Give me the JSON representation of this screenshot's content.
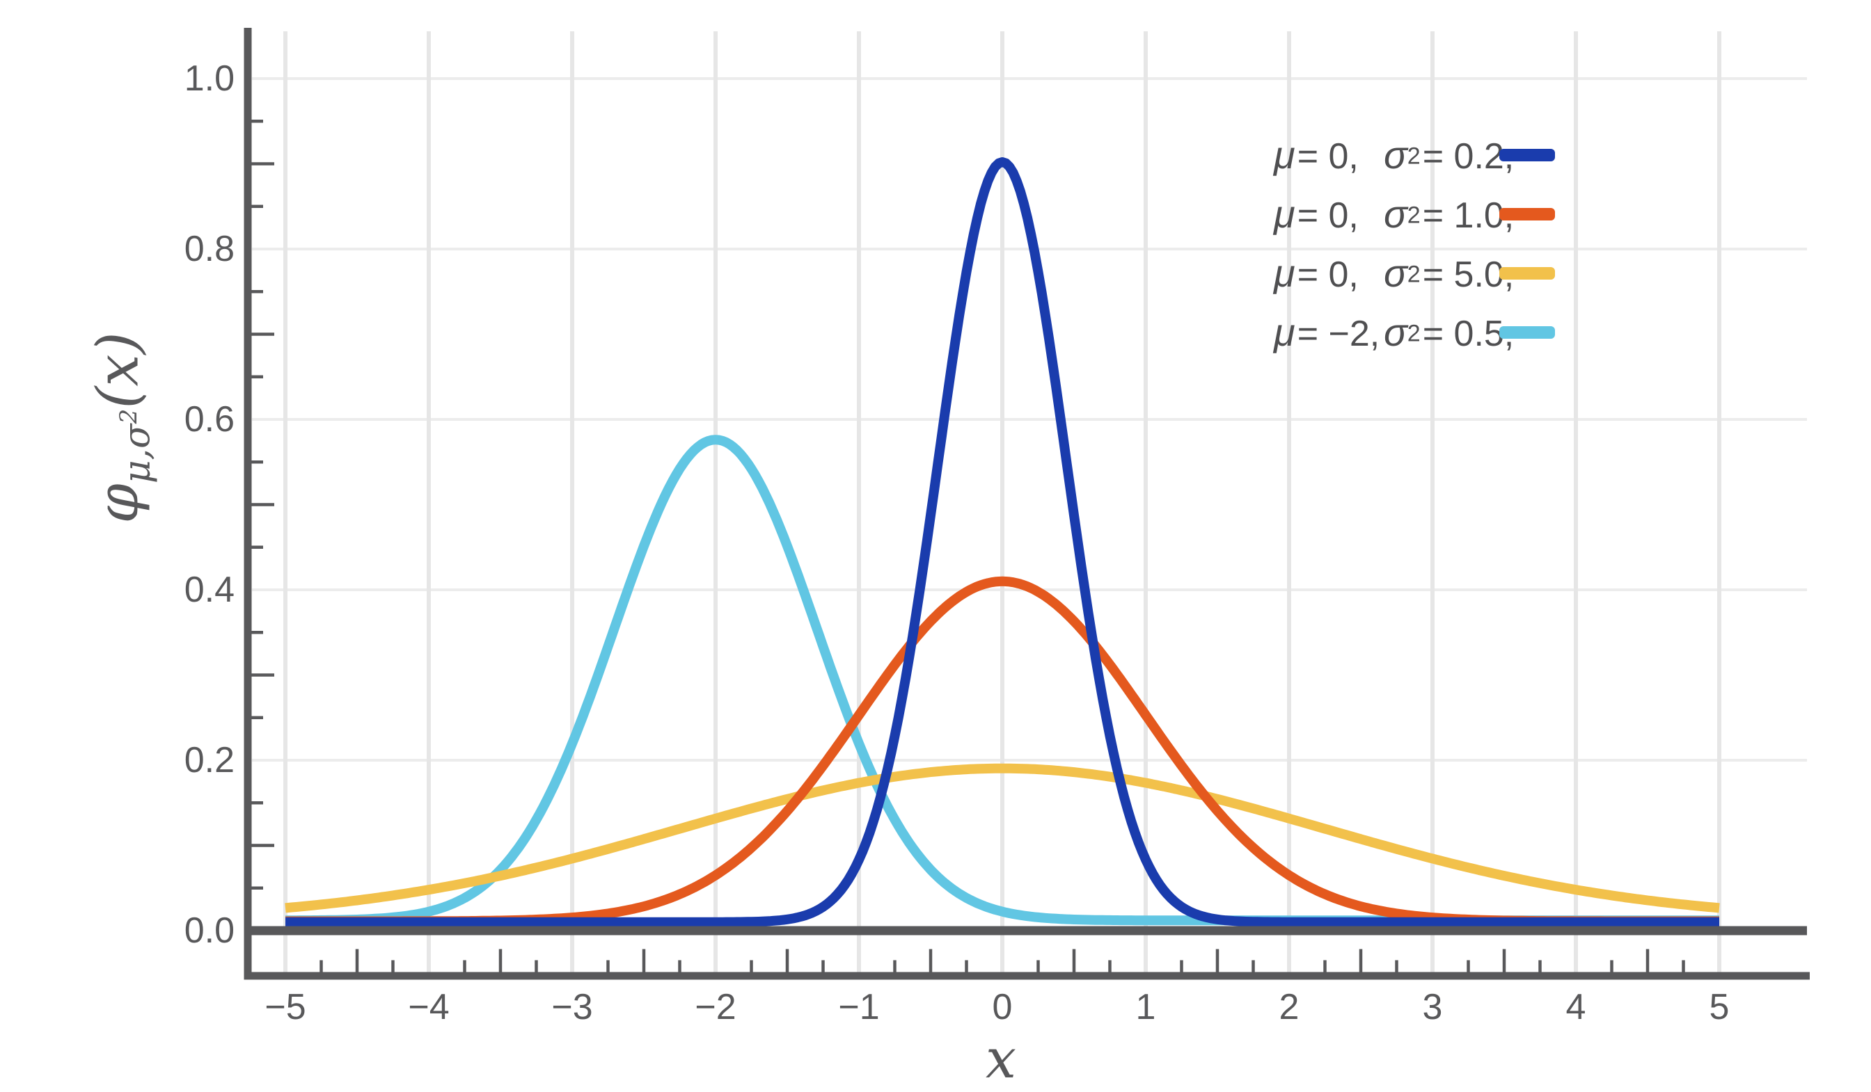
{
  "chart_data": {
    "type": "line",
    "title": "",
    "xlabel": "x",
    "ylabel": "φμ,σ²(x)",
    "ylabel_parts": {
      "phi": "φ",
      "subscript": "μ,σ",
      "subscript_sup": "2",
      "args": "(x)"
    },
    "xlim": [
      -5,
      5
    ],
    "ylim": [
      0,
      1.05
    ],
    "grid": true,
    "legend_position": "top-right",
    "function": "normal probability density φ(x) = exp(−(x−μ)²/(2σ²)) / √(2πσ²)",
    "x_gridlines": [
      -5,
      -4,
      -3,
      -2,
      -1,
      0,
      1,
      2,
      3,
      4,
      5
    ],
    "y_gridlines": [
      0.2,
      0.4,
      0.6,
      0.8,
      1.0
    ],
    "minor_ticks": {
      "x_step": 0.25,
      "x_medium_step": 0.5,
      "y_step": 0.05,
      "y_medium_step": 0.1
    },
    "x_tick_labels": [
      {
        "value": -5,
        "label": "−5"
      },
      {
        "value": -4,
        "label": "−4"
      },
      {
        "value": -3,
        "label": "−3"
      },
      {
        "value": -2,
        "label": "−2"
      },
      {
        "value": -1,
        "label": "−1"
      },
      {
        "value": 0,
        "label": "0"
      },
      {
        "value": 1,
        "label": "1"
      },
      {
        "value": 2,
        "label": "2"
      },
      {
        "value": 3,
        "label": "3"
      },
      {
        "value": 4,
        "label": "4"
      },
      {
        "value": 5,
        "label": "5"
      }
    ],
    "y_tick_labels": [
      {
        "value": 0.0,
        "label": "0.0"
      },
      {
        "value": 0.2,
        "label": "0.2"
      },
      {
        "value": 0.4,
        "label": "0.4"
      },
      {
        "value": 0.6,
        "label": "0.6"
      },
      {
        "value": 0.8,
        "label": "0.8"
      },
      {
        "value": 1.0,
        "label": "1.0"
      }
    ],
    "series": [
      {
        "name": "μ=0, σ²=0.2",
        "mu": 0,
        "sigma2": 0.2,
        "color": "#1a3cad",
        "peak_x": 0,
        "peak_y": 0.892,
        "z": 4
      },
      {
        "name": "μ=0, σ²=1.0",
        "mu": 0,
        "sigma2": 1.0,
        "color": "#e4591e",
        "peak_x": 0,
        "peak_y": 0.399,
        "z": 3
      },
      {
        "name": "μ=0, σ²=5.0",
        "mu": 0,
        "sigma2": 5.0,
        "color": "#f2c14b",
        "peak_x": 0,
        "peak_y": 0.178,
        "z": 2
      },
      {
        "name": "μ=−2, σ²=0.5",
        "mu": -2,
        "sigma2": 0.5,
        "color": "#61c6e3",
        "peak_x": -2,
        "peak_y": 0.564,
        "z": 1
      }
    ]
  },
  "legend": {
    "rows": [
      {
        "mu_symbol": "μ",
        "mu_value": "= 0,",
        "sigma_symbol": "σ",
        "sigma_sup": "2",
        "sigma_value": "= 0.2,"
      },
      {
        "mu_symbol": "μ",
        "mu_value": "= 0,",
        "sigma_symbol": "σ",
        "sigma_sup": "2",
        "sigma_value": "= 1.0,"
      },
      {
        "mu_symbol": "μ",
        "mu_value": "= 0,",
        "sigma_symbol": "σ",
        "sigma_sup": "2",
        "sigma_value": "= 5.0,"
      },
      {
        "mu_symbol": "μ",
        "mu_value": "= −2,",
        "sigma_symbol": "σ",
        "sigma_sup": "2",
        "sigma_value": "= 0.5,"
      }
    ]
  },
  "colors": {
    "background": "#ffffff",
    "axis": "#58585a",
    "tick_text": "#58585a",
    "legend_text": "#4f4f51",
    "grid_vertical": "#e6e6e6",
    "grid_horizontal": "#ececec"
  }
}
